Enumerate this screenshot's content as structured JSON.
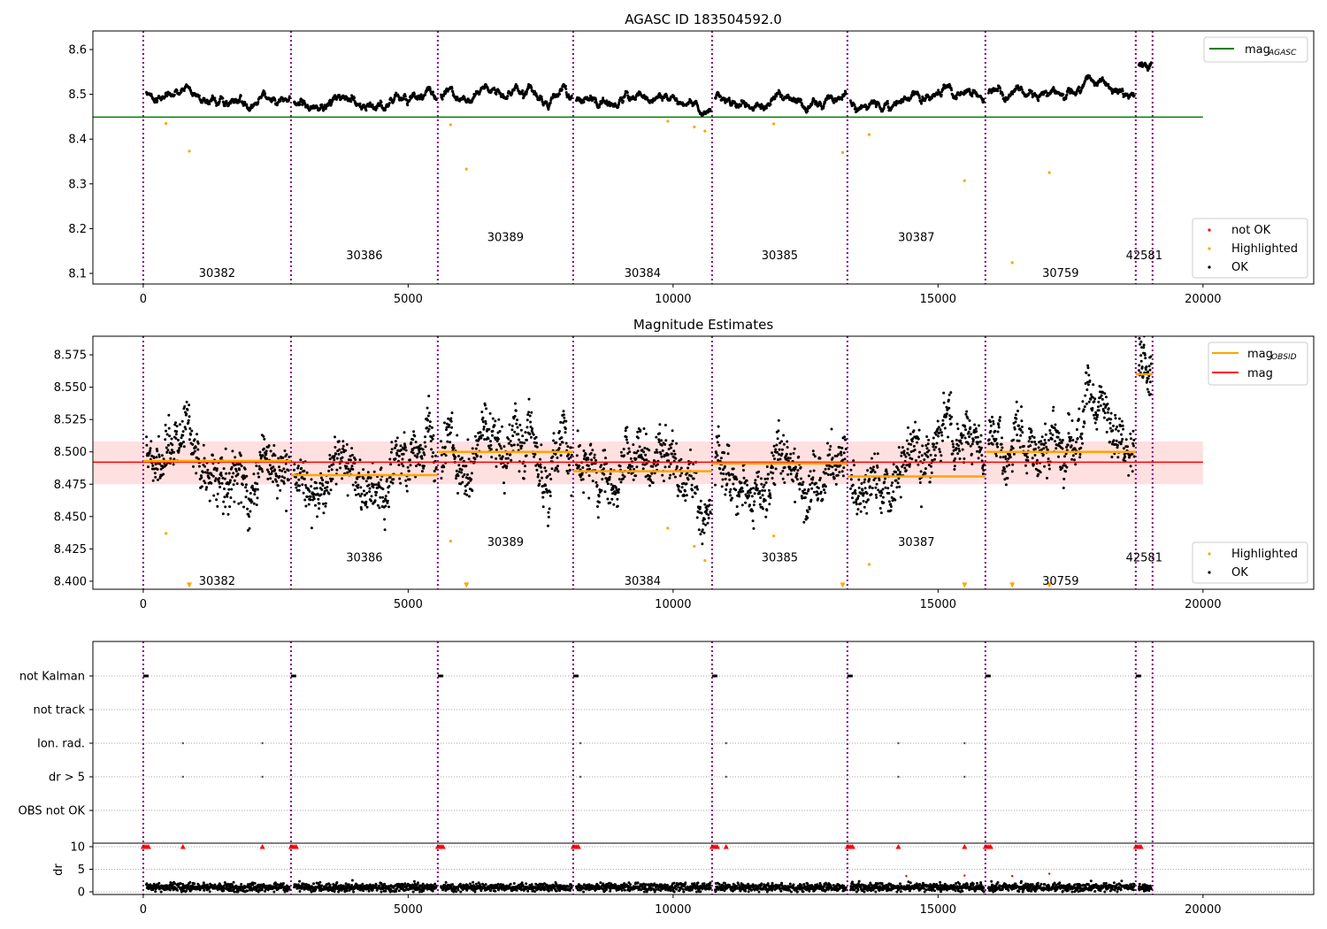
{
  "chart_data": [
    {
      "type": "scatter",
      "title": "AGASC ID 183504592.0",
      "xlim": [
        -950,
        22090
      ],
      "ylim": [
        8.0763,
        8.6415
      ],
      "xticks": [
        0,
        5000,
        10000,
        15000,
        20000
      ],
      "yticks": [
        8.1,
        8.2,
        8.3,
        8.4,
        8.5,
        8.6
      ],
      "ytick_labels": [
        "8.1",
        "8.2",
        "8.3",
        "8.4",
        "8.5",
        "8.6"
      ],
      "agasc_mag": 8.449,
      "agasc_line_xrange": [
        -950,
        20000
      ],
      "legend_lines": [
        {
          "label": "mag",
          "sub": "AGASC",
          "color": "#008000"
        }
      ],
      "legend_points": [
        {
          "label": "not OK",
          "color": "#ff0000"
        },
        {
          "label": "Highlighted",
          "color": "#ffa500"
        },
        {
          "label": "OK",
          "color": "#000000"
        }
      ],
      "obsid_label_y": [
        8.1,
        8.14,
        8.18,
        8.1,
        8.14,
        8.18,
        8.1,
        8.14
      ],
      "highlighted": [
        [
          430,
          8.435
        ],
        [
          870,
          8.373
        ],
        [
          5800,
          8.432
        ],
        [
          6100,
          8.333
        ],
        [
          9900,
          8.44
        ],
        [
          10400,
          8.427
        ],
        [
          10600,
          8.418
        ],
        [
          11900,
          8.434
        ],
        [
          13200,
          8.37
        ],
        [
          13700,
          8.41
        ],
        [
          15500,
          8.307
        ],
        [
          16400,
          8.124
        ],
        [
          17100,
          8.325
        ]
      ]
    },
    {
      "type": "scatter",
      "title": "Magnitude Estimates",
      "xlim": [
        -950,
        22090
      ],
      "ylim": [
        8.3938,
        8.5894
      ],
      "xticks": [
        0,
        5000,
        10000,
        15000,
        20000
      ],
      "yticks": [
        8.4,
        8.425,
        8.45,
        8.475,
        8.5,
        8.525,
        8.55,
        8.575
      ],
      "ytick_labels": [
        "8.400",
        "8.425",
        "8.450",
        "8.475",
        "8.500",
        "8.525",
        "8.550",
        "8.575"
      ],
      "mag": 8.492,
      "mag_band": [
        8.475,
        8.508
      ],
      "legend_lines": [
        {
          "label": "mag",
          "sub": "OBSID",
          "color": "#ffa500"
        },
        {
          "label": "mag",
          "sub": "",
          "color": "#ff0000"
        }
      ],
      "legend_points": [
        {
          "label": "Highlighted",
          "color": "#ffa500"
        },
        {
          "label": "OK",
          "color": "#000000"
        }
      ],
      "obsid_label_y": [
        8.4,
        8.418,
        8.43,
        8.4,
        8.418,
        8.43,
        8.4,
        8.418
      ],
      "highlighted": [
        [
          430,
          8.437
        ],
        [
          5800,
          8.431
        ],
        [
          9900,
          8.441
        ],
        [
          10400,
          8.427
        ],
        [
          10600,
          8.416
        ],
        [
          11900,
          8.435
        ],
        [
          13700,
          8.413
        ]
      ],
      "out_of_range_low": [
        870,
        6100,
        13200,
        15500,
        16400,
        17100
      ]
    },
    {
      "type": "scatter",
      "title": "",
      "flags": [
        "not Kalman",
        "not track",
        "Ion. rad.",
        "dr > 5",
        "OBS not OK"
      ],
      "flag_points": {
        "Ion. rad.": [
          750,
          2250,
          8250,
          11000,
          14250,
          15500
        ],
        "dr > 5": [
          750,
          2250,
          8250,
          11000,
          14250,
          15500
        ]
      },
      "dr_ylabel": "dr",
      "dr_ylim": [
        -0.59,
        10.78
      ],
      "dr_yticks": [
        0,
        5,
        10
      ],
      "dr_ytick_labels": [
        "0",
        "5",
        "10"
      ],
      "dr_clipped_x": [
        750,
        2250,
        11000,
        14250,
        15500
      ],
      "dr_high": [
        [
          14400,
          3.5
        ],
        [
          15500,
          3.6
        ],
        [
          16400,
          3.5
        ],
        [
          17100,
          4.0
        ]
      ],
      "xticks": [
        0,
        5000,
        10000,
        15000,
        20000
      ]
    }
  ],
  "xtick_labels": [
    "0",
    "5000",
    "10000",
    "15000",
    "20000"
  ],
  "obsids": [
    {
      "id": "30382",
      "start": 0,
      "end": 2788,
      "mean": 8.493
    },
    {
      "id": "30386",
      "start": 2788,
      "end": 5559,
      "mean": 8.482
    },
    {
      "id": "30389",
      "start": 5559,
      "end": 8114,
      "mean": 8.5
    },
    {
      "id": "30384",
      "start": 8114,
      "end": 10735,
      "mean": 8.485
    },
    {
      "id": "30385",
      "start": 10735,
      "end": 13289,
      "mean": 8.491
    },
    {
      "id": "30387",
      "start": 13289,
      "end": 15893,
      "mean": 8.481
    },
    {
      "id": "30759",
      "start": 15893,
      "end": 18731,
      "mean": 8.5
    },
    {
      "id": "42581",
      "start": 18731,
      "end": 19048,
      "mean": 8.56
    }
  ],
  "boundaries": [
    0,
    2788,
    5559,
    8114,
    10735,
    13289,
    15893,
    18731,
    19048
  ],
  "colors": {
    "ok": "#000000",
    "highlighted": "#ffa500",
    "not_ok": "#ff0000",
    "agasc": "#008000",
    "boundary": "#800080",
    "band": "#ffcccc"
  }
}
